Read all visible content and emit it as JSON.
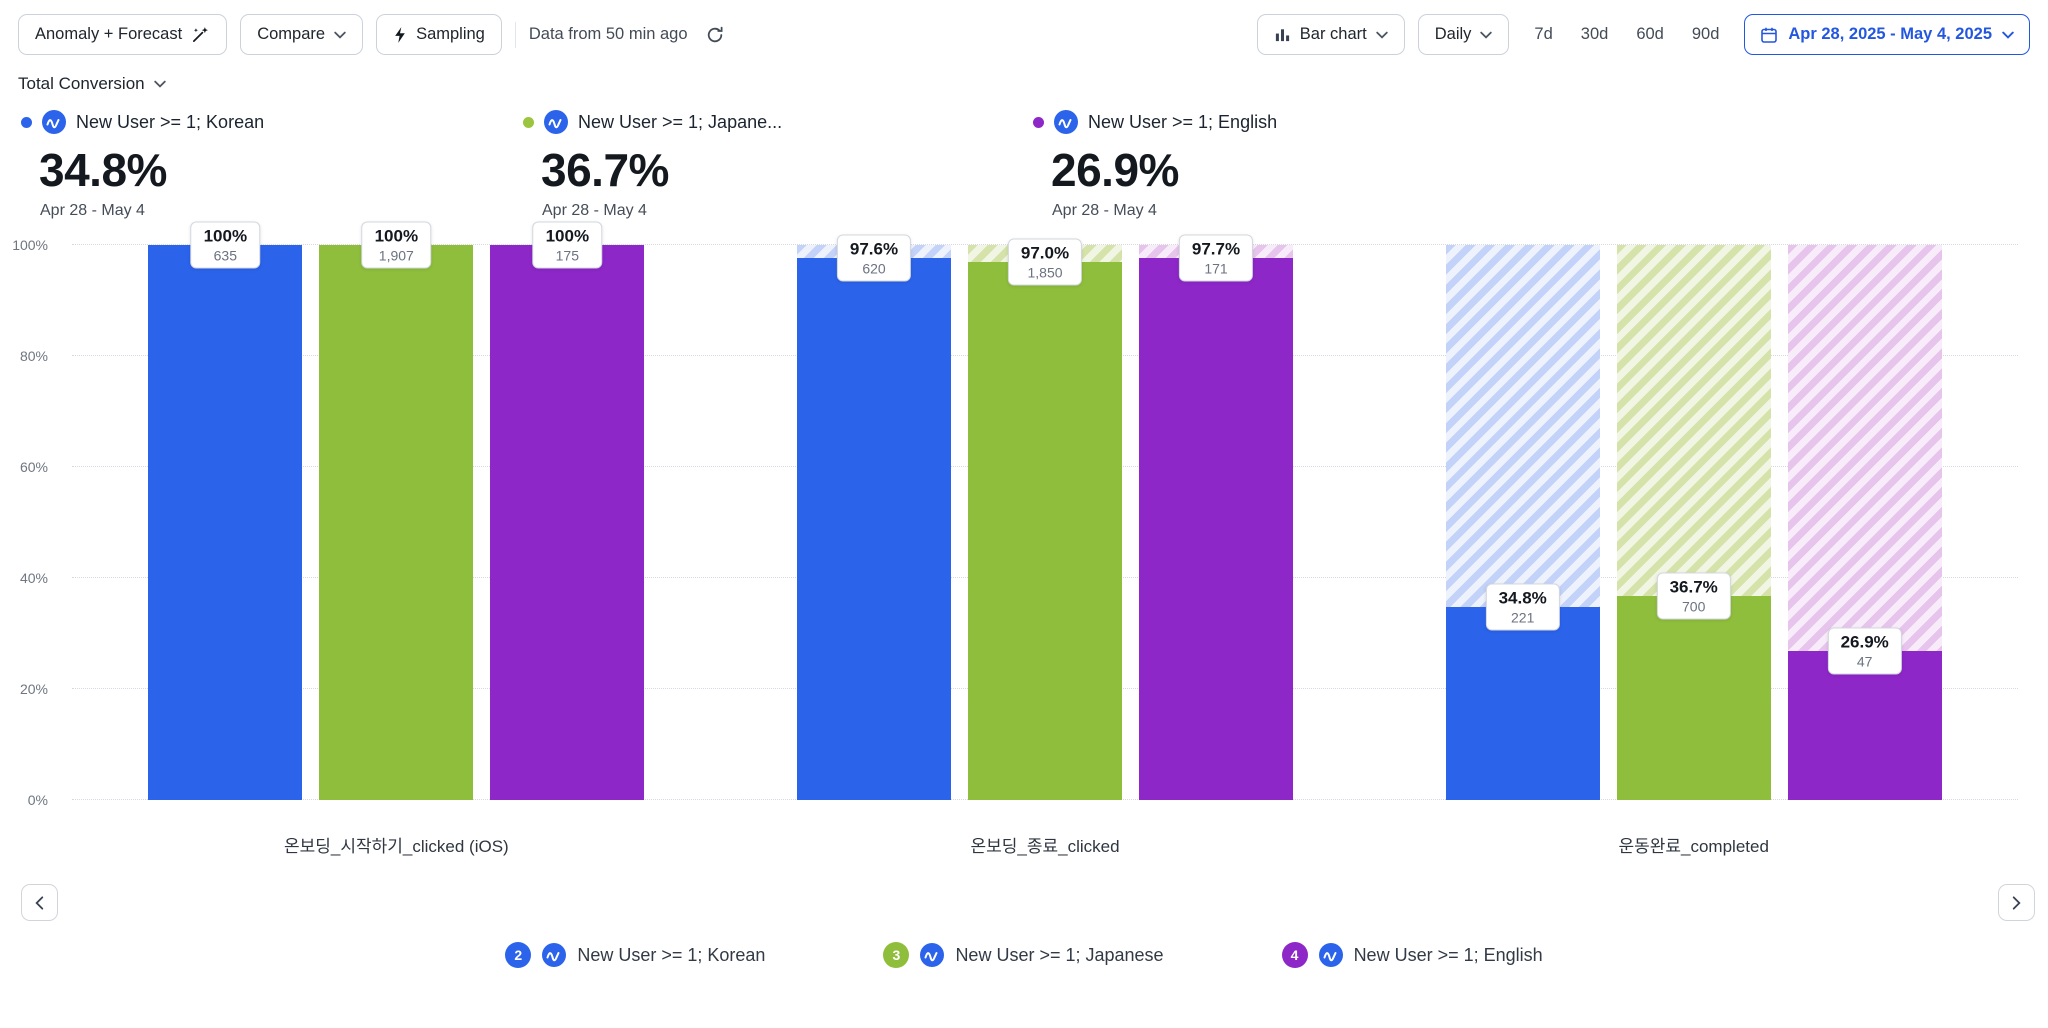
{
  "toolbar": {
    "anomaly_button": "Anomaly + Forecast",
    "compare_button": "Compare",
    "sampling_button": "Sampling",
    "freshness": "Data from 50 min ago",
    "chart_type": "Bar chart",
    "interval": "Daily",
    "range_buttons": [
      "7d",
      "30d",
      "60d",
      "90d"
    ],
    "date_range": "Apr 28, 2025 - May 4, 2025",
    "accent_color": "#2457e0"
  },
  "metric_selector": {
    "label": "Total Conversion"
  },
  "icons": {
    "anomaly": "magic-wand-icon",
    "sampling": "lightning-icon",
    "refresh": "refresh-icon",
    "chart_type": "bar-chart-icon",
    "date": "calendar-icon",
    "dropdown": "chevron-down-icon",
    "series": "cohort-icon",
    "pager_left": "chevron-left-icon",
    "pager_right": "chevron-right-icon"
  },
  "summaries": [
    {
      "name": "New User >= 1; Korean",
      "value": "34.8%",
      "range": "Apr 28 - May 4",
      "color": "#2b63eb"
    },
    {
      "name": "New User >= 1; Japane...",
      "value": "36.7%",
      "range": "Apr 28 - May 4",
      "color": "#9cc53f"
    },
    {
      "name": "New User >= 1; English",
      "value": "26.9%",
      "range": "Apr 28 - May 4",
      "color": "#8d27c8"
    }
  ],
  "legend": [
    {
      "index": "2",
      "label": "New User >= 1; Korean",
      "color": "#2b63eb"
    },
    {
      "index": "3",
      "label": "New User >= 1; Japanese",
      "color": "#8fbe3c"
    },
    {
      "index": "4",
      "label": "New User >= 1; English",
      "color": "#8d27c8"
    }
  ],
  "chart_data": {
    "type": "bar",
    "title": "Total Conversion",
    "ylim": [
      0,
      100
    ],
    "ytick_labels": [
      "0%",
      "20%",
      "40%",
      "60%",
      "80%",
      "100%"
    ],
    "grid": "horizontal-dotted",
    "legend_position": "bottom",
    "categories": [
      "온보딩_시작하기_clicked (iOS)",
      "온보딩_종료_clicked",
      "운동완료_completed"
    ],
    "series": [
      {
        "name": "New User >= 1; Korean",
        "color": "#2b63eb",
        "hatch_bg": "#eef2fd",
        "hatch_stripe": "#c3d2f8",
        "percent_labels": [
          "100%",
          "97.6%",
          "34.8%"
        ],
        "counts": [
          "635",
          "620",
          "221"
        ]
      },
      {
        "name": "New User >= 1; Japanese",
        "color": "#8fbe3c",
        "hatch_bg": "#f1f5e3",
        "hatch_stripe": "#d5e3aa",
        "percent_labels": [
          "100%",
          "97.0%",
          "36.7%"
        ],
        "counts": [
          "1,907",
          "1,850",
          "700"
        ]
      },
      {
        "name": "New User >= 1; English",
        "color": "#8d27c8",
        "hatch_bg": "#f8ecfa",
        "hatch_stripe": "#e6c4ec",
        "percent_labels": [
          "100%",
          "97.7%",
          "26.9%"
        ],
        "counts": [
          "175",
          "171",
          "47"
        ]
      }
    ]
  }
}
